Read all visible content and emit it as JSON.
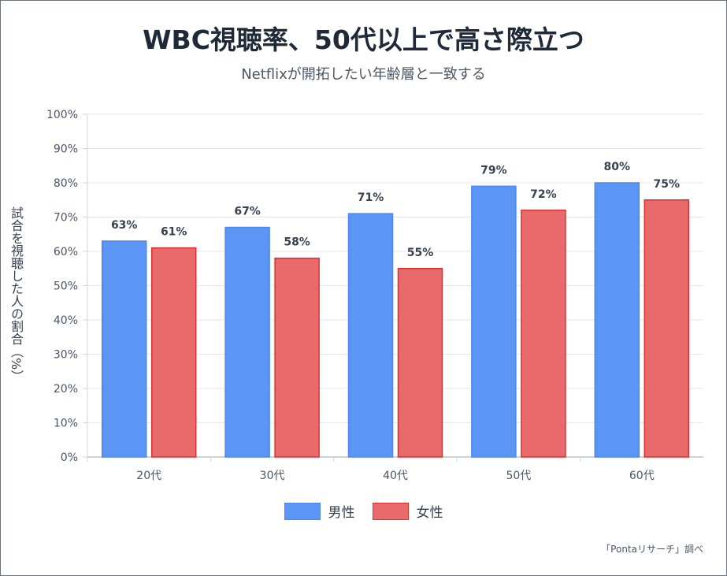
{
  "chart_data": {
    "type": "bar",
    "title": "WBC視聴率、50代以上で高さ際立つ",
    "subtitle": "Netflixが開拓したい年齢層と一致する",
    "ylabel": "試合を視聴した人の割合（%）",
    "xlabel": "",
    "categories": [
      "20代",
      "30代",
      "40代",
      "50代",
      "60代"
    ],
    "series": [
      {
        "name": "男性",
        "values": [
          63,
          67,
          71,
          79,
          80
        ],
        "color": "#5b95f5",
        "border": "#4f86ea"
      },
      {
        "name": "女性",
        "values": [
          61,
          58,
          55,
          72,
          75
        ],
        "color": "#e86a6a",
        "border": "#dc2f2f"
      }
    ],
    "ylim": [
      0,
      100
    ],
    "yticks": [
      "0%",
      "10%",
      "20%",
      "30%",
      "40%",
      "50%",
      "60%",
      "70%",
      "80%",
      "90%",
      "100%"
    ],
    "grid": true,
    "legend": "bottom",
    "source": "「Pontaリサーチ」調べ"
  }
}
